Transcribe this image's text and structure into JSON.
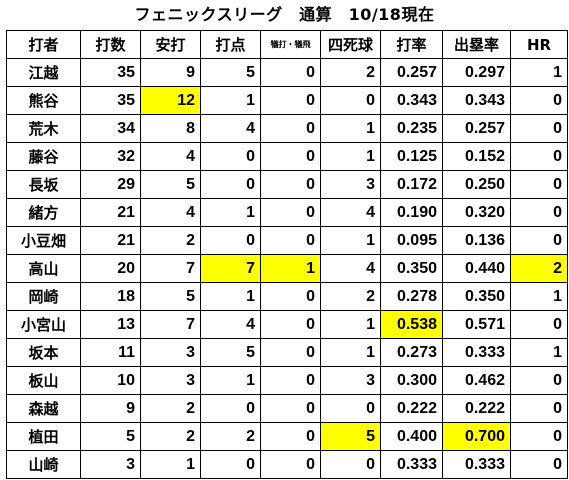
{
  "title": "フェニックスリーグ　通算　10/18現在",
  "highlight_color": "#ffff00",
  "columns": [
    "打者",
    "打数",
    "安打",
    "打点",
    "犠打・犠飛",
    "四死球",
    "打率",
    "出塁率",
    "HR"
  ],
  "rows": [
    {
      "name": "江越",
      "ab": "35",
      "h": "9",
      "rbi": "5",
      "sac": "0",
      "bb": "2",
      "avg": "0.257",
      "obp": "0.297",
      "hr": "1"
    },
    {
      "name": "熊谷",
      "ab": "35",
      "h": "12",
      "rbi": "1",
      "sac": "0",
      "bb": "0",
      "avg": "0.343",
      "obp": "0.343",
      "hr": "0"
    },
    {
      "name": "荒木",
      "ab": "34",
      "h": "8",
      "rbi": "4",
      "sac": "0",
      "bb": "1",
      "avg": "0.235",
      "obp": "0.257",
      "hr": "0"
    },
    {
      "name": "藤谷",
      "ab": "32",
      "h": "4",
      "rbi": "0",
      "sac": "0",
      "bb": "1",
      "avg": "0.125",
      "obp": "0.152",
      "hr": "0"
    },
    {
      "name": "長坂",
      "ab": "29",
      "h": "5",
      "rbi": "0",
      "sac": "0",
      "bb": "3",
      "avg": "0.172",
      "obp": "0.250",
      "hr": "0"
    },
    {
      "name": "緒方",
      "ab": "21",
      "h": "4",
      "rbi": "1",
      "sac": "0",
      "bb": "4",
      "avg": "0.190",
      "obp": "0.320",
      "hr": "0"
    },
    {
      "name": "小豆畑",
      "ab": "21",
      "h": "2",
      "rbi": "0",
      "sac": "0",
      "bb": "1",
      "avg": "0.095",
      "obp": "0.136",
      "hr": "0"
    },
    {
      "name": "高山",
      "ab": "20",
      "h": "7",
      "rbi": "7",
      "sac": "1",
      "bb": "4",
      "avg": "0.350",
      "obp": "0.440",
      "hr": "2"
    },
    {
      "name": "岡崎",
      "ab": "18",
      "h": "5",
      "rbi": "1",
      "sac": "0",
      "bb": "2",
      "avg": "0.278",
      "obp": "0.350",
      "hr": "1"
    },
    {
      "name": "小宮山",
      "ab": "13",
      "h": "7",
      "rbi": "4",
      "sac": "0",
      "bb": "1",
      "avg": "0.538",
      "obp": "0.571",
      "hr": "0"
    },
    {
      "name": "坂本",
      "ab": "11",
      "h": "3",
      "rbi": "5",
      "sac": "0",
      "bb": "1",
      "avg": "0.273",
      "obp": "0.333",
      "hr": "1"
    },
    {
      "name": "板山",
      "ab": "10",
      "h": "3",
      "rbi": "1",
      "sac": "0",
      "bb": "3",
      "avg": "0.300",
      "obp": "0.462",
      "hr": "0"
    },
    {
      "name": "森越",
      "ab": "9",
      "h": "2",
      "rbi": "0",
      "sac": "0",
      "bb": "0",
      "avg": "0.222",
      "obp": "0.222",
      "hr": "0"
    },
    {
      "name": "植田",
      "ab": "5",
      "h": "2",
      "rbi": "2",
      "sac": "0",
      "bb": "5",
      "avg": "0.400",
      "obp": "0.700",
      "hr": "0"
    },
    {
      "name": "山崎",
      "ab": "3",
      "h": "1",
      "rbi": "0",
      "sac": "0",
      "bb": "0",
      "avg": "0.333",
      "obp": "0.333",
      "hr": "0"
    }
  ],
  "highlights": [
    {
      "row": 1,
      "col": "h"
    },
    {
      "row": 7,
      "col": "rbi"
    },
    {
      "row": 7,
      "col": "sac"
    },
    {
      "row": 7,
      "col": "hr"
    },
    {
      "row": 9,
      "col": "avg"
    },
    {
      "row": 13,
      "col": "bb"
    },
    {
      "row": 13,
      "col": "obp"
    }
  ]
}
